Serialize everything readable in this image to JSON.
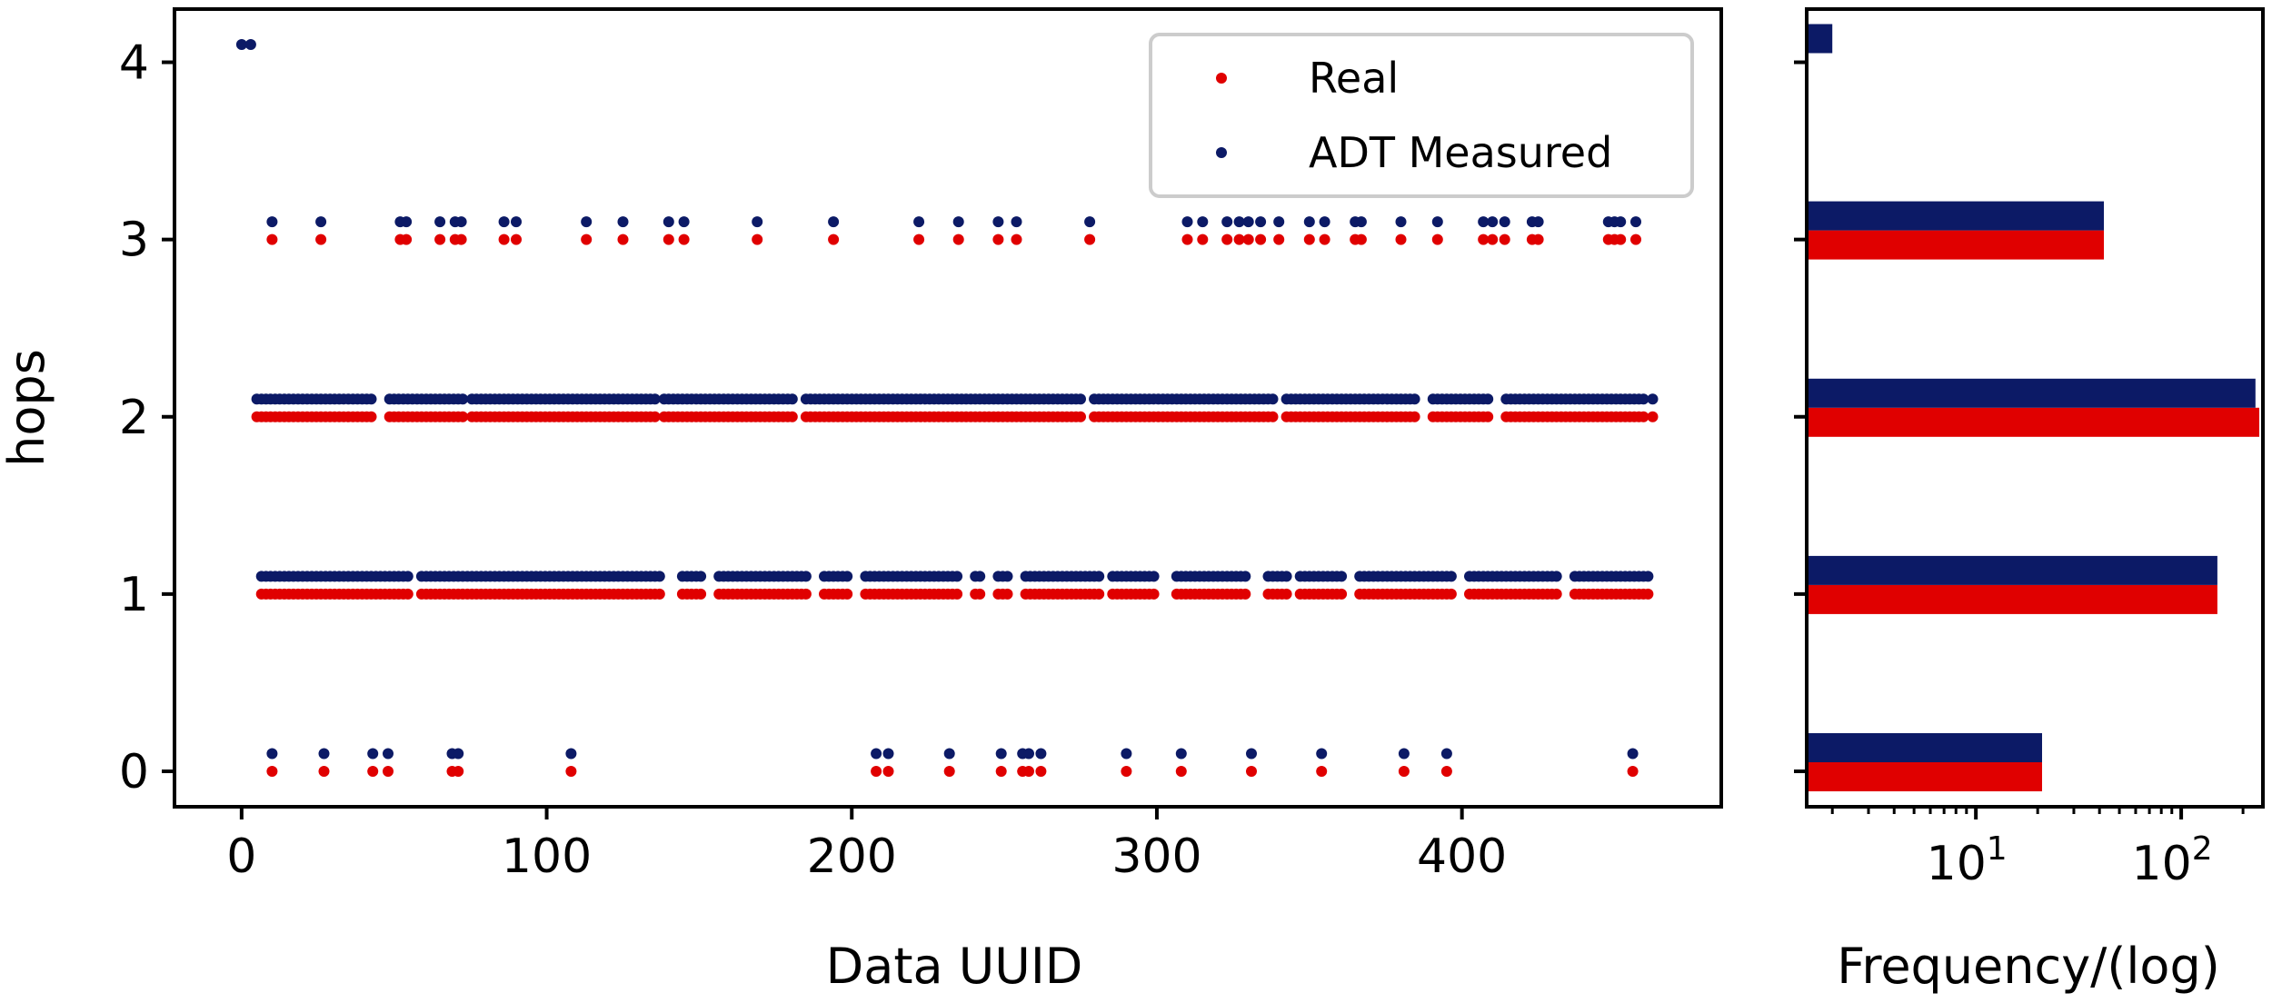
{
  "chart_data": [
    {
      "type": "scatter",
      "title": "",
      "xlabel": "Data UUID",
      "ylabel": "hops",
      "xlim": [
        -22,
        485
      ],
      "ylim": [
        -0.2,
        4.3
      ],
      "xticks": [
        0,
        100,
        200,
        300,
        400
      ],
      "yticks": [
        0,
        1,
        2,
        3,
        4
      ],
      "grid": false,
      "legend": "top-right",
      "series": [
        {
          "name": "Real",
          "color": "#e00000",
          "offset": 0.0
        },
        {
          "name": "ADT Measured",
          "color": "#0c1a66",
          "offset": 0.1
        }
      ],
      "points": {
        "hop4": [
          0,
          3
        ],
        "hop3": [
          10,
          26,
          52,
          54,
          65,
          70,
          72,
          86,
          90,
          113,
          125,
          140,
          145,
          169,
          194,
          222,
          235,
          248,
          254,
          278,
          310,
          315,
          323,
          327,
          330,
          334,
          340,
          350,
          355,
          365,
          367,
          380,
          392,
          407,
          410,
          414,
          423,
          425,
          448,
          450,
          452,
          457
        ],
        "hop0": [
          10,
          27,
          43,
          48,
          69,
          71,
          108,
          208,
          212,
          232,
          249,
          256,
          258,
          262,
          290,
          308,
          331,
          354,
          381,
          395,
          456
        ],
        "gaps2": [
          [
            -2,
            4
          ],
          [
            44,
            47
          ],
          [
            73,
            75
          ],
          [
            136,
            138
          ],
          [
            182,
            184
          ],
          [
            276,
            278
          ],
          [
            339,
            342
          ],
          [
            385,
            389
          ],
          [
            410,
            413
          ],
          [
            460,
            462
          ]
        ],
        "gaps1": [
          [
            -2,
            5
          ],
          [
            56,
            58
          ],
          [
            138,
            143
          ],
          [
            152,
            156
          ],
          [
            186,
            190
          ],
          [
            200,
            204
          ],
          [
            236,
            240
          ],
          [
            243,
            247
          ],
          [
            252,
            256
          ],
          [
            282,
            285
          ],
          [
            300,
            305
          ],
          [
            330,
            336
          ],
          [
            343,
            346
          ],
          [
            362,
            366
          ],
          [
            398,
            402
          ],
          [
            432,
            436
          ]
        ]
      }
    },
    {
      "type": "bar",
      "title": "",
      "xlabel": "Frequency/(log)",
      "ylabel": "",
      "orientation": "horizontal",
      "xscale": "log",
      "xlim": [
        1.5,
        250
      ],
      "xticks": [
        "10^1",
        "10^2"
      ],
      "categories": [
        0,
        1,
        2,
        3,
        4
      ],
      "series": [
        {
          "name": "Real",
          "color": "#e00000",
          "values": [
            21,
            150,
            240,
            42,
            0
          ]
        },
        {
          "name": "ADT Measured",
          "color": "#0c1a66",
          "values": [
            21,
            150,
            230,
            42,
            2
          ]
        }
      ]
    }
  ]
}
